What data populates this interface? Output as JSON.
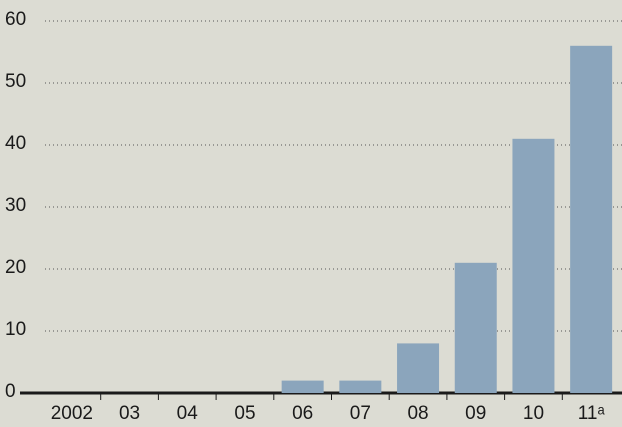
{
  "chart_data": {
    "type": "bar",
    "categories": [
      "2002",
      "03",
      "04",
      "05",
      "06",
      "07",
      "08",
      "09",
      "10",
      "11ᵃ"
    ],
    "values": [
      0,
      0,
      0,
      0,
      2,
      2,
      8,
      21,
      41,
      56
    ],
    "color": "#8ba5bc",
    "ylim": [
      0,
      60
    ],
    "yticks": [
      0,
      10,
      20,
      30,
      40,
      50,
      60
    ],
    "grid": true
  }
}
